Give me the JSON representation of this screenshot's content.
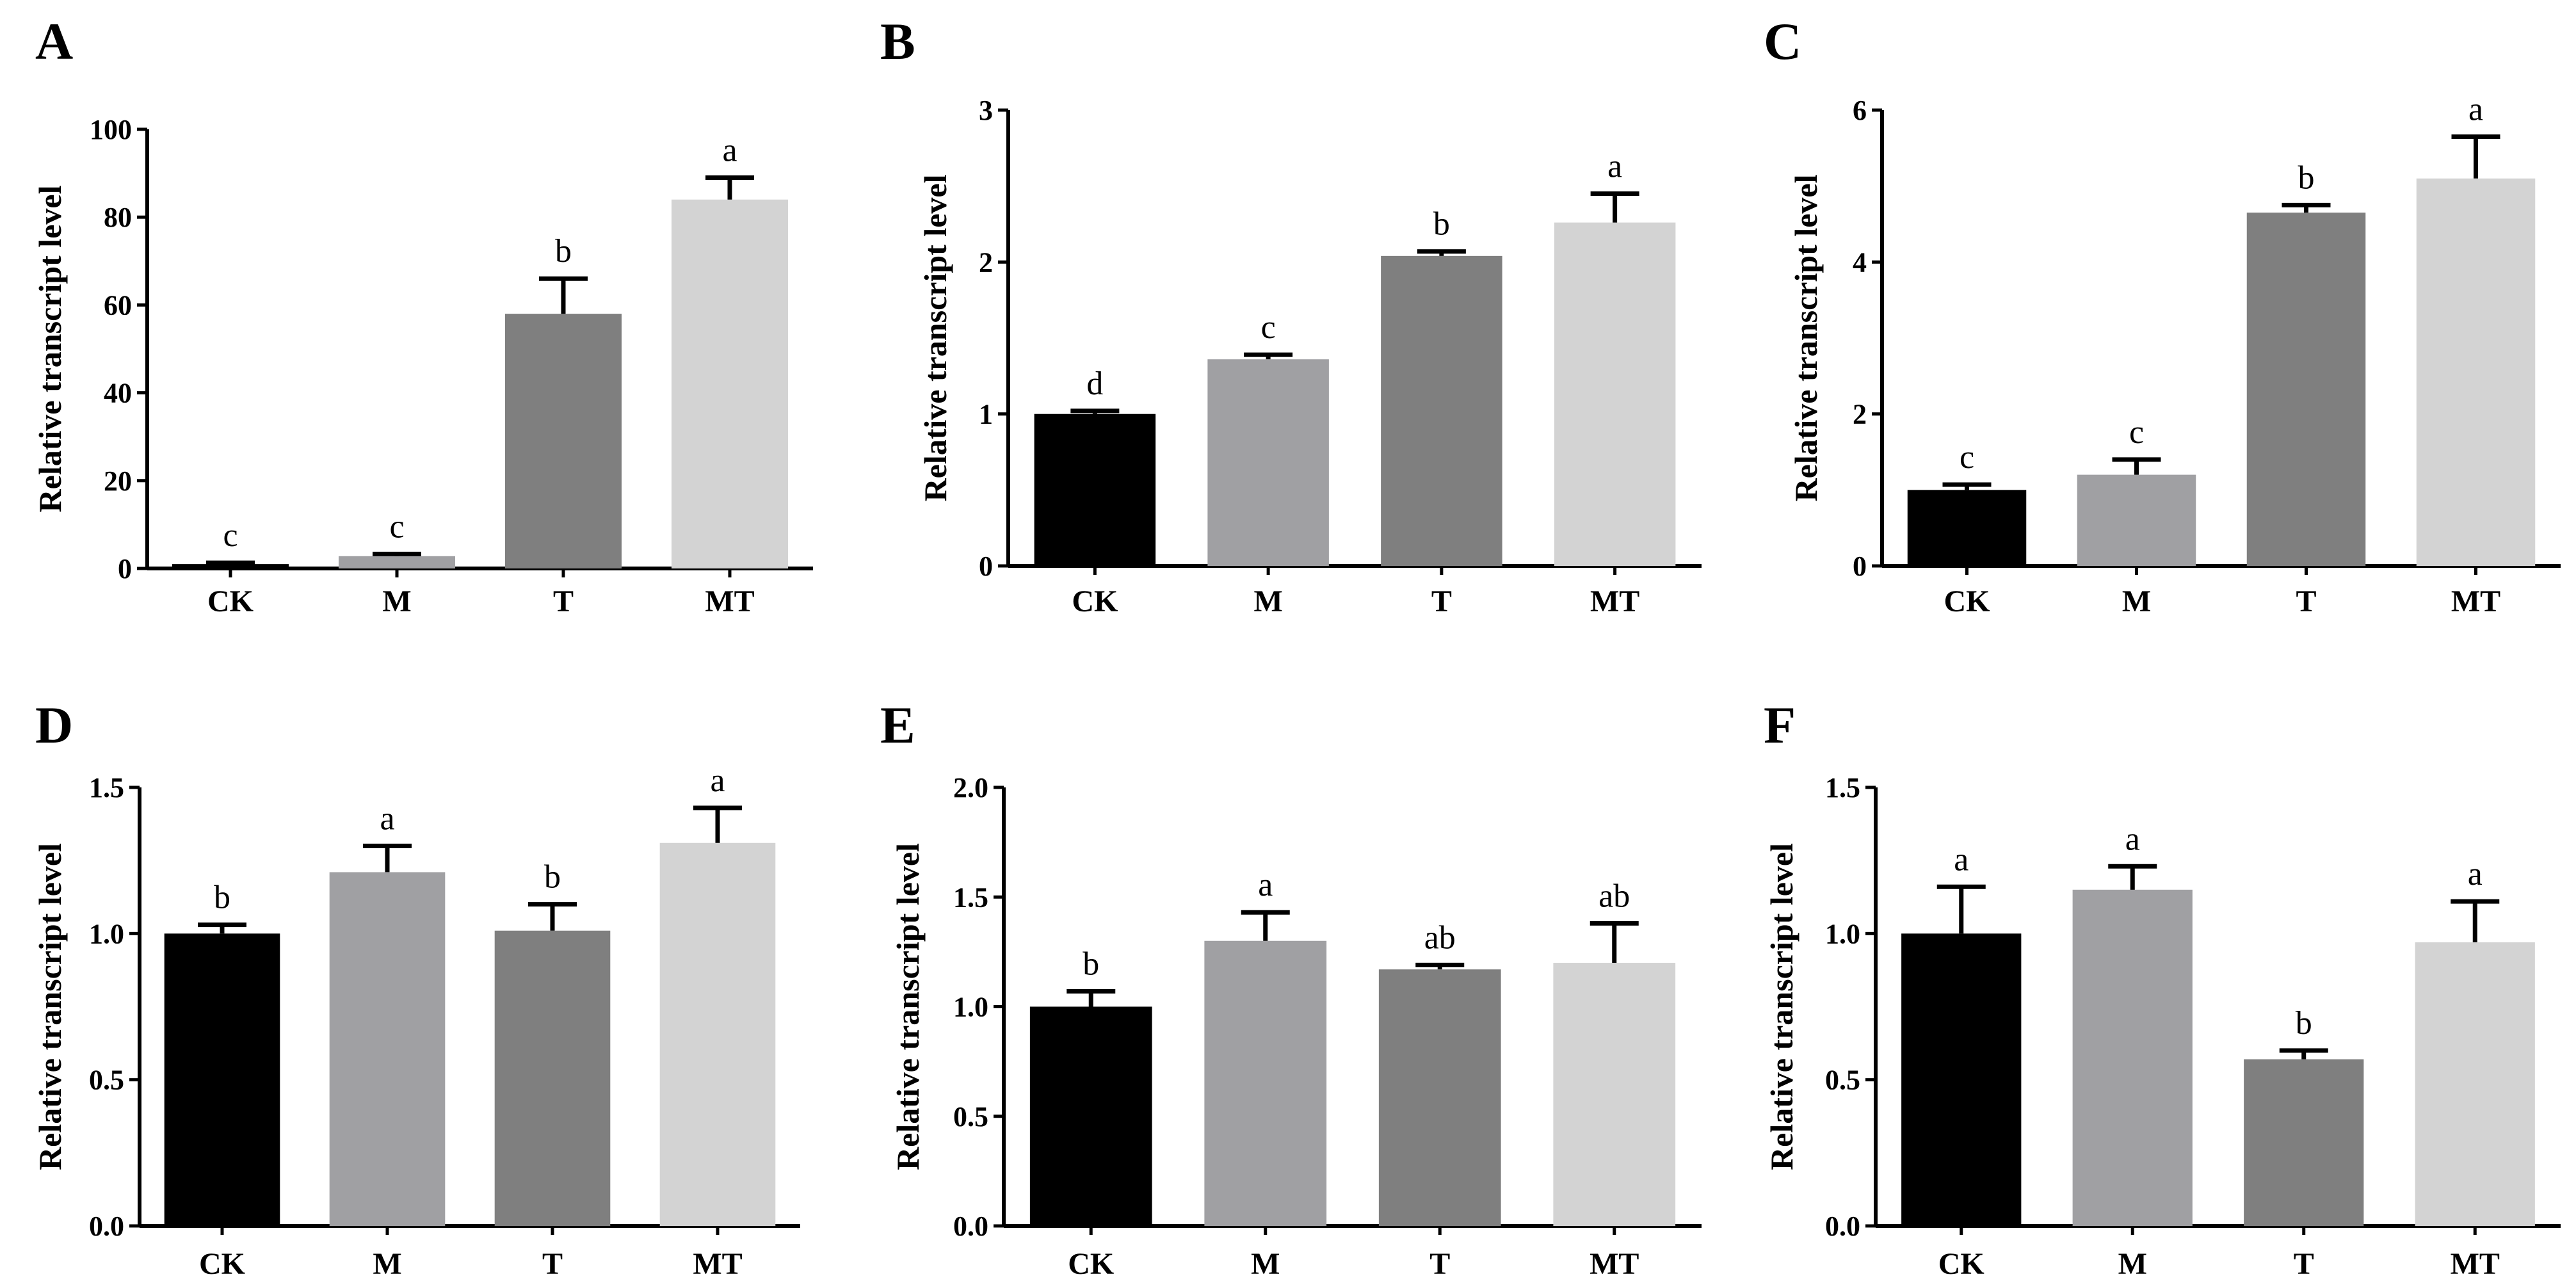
{
  "chart_data": [
    {
      "type": "bar",
      "panel": "A",
      "ylabel": "Relative transcript level",
      "categories": [
        "CK",
        "M",
        "T",
        "MT"
      ],
      "values": [
        1.0,
        2.8,
        58.0,
        84.0
      ],
      "errors": [
        0.3,
        0.5,
        8.0,
        5.0
      ],
      "significance": [
        "c",
        "c",
        "b",
        "a"
      ],
      "ylim": [
        0,
        100
      ],
      "yticks": [
        0,
        20,
        40,
        60,
        80,
        100
      ],
      "ytick_labels": [
        "0",
        "20",
        "40",
        "60",
        "80",
        "100"
      ],
      "colors": [
        "#000000",
        "#a0a0a3",
        "#7f7f7f",
        "#d3d3d3"
      ]
    },
    {
      "type": "bar",
      "panel": "B",
      "ylabel": "Relative transcript level",
      "categories": [
        "CK",
        "M",
        "T",
        "MT"
      ],
      "values": [
        1.0,
        1.36,
        2.04,
        2.26
      ],
      "errors": [
        0.02,
        0.03,
        0.03,
        0.19
      ],
      "significance": [
        "d",
        "c",
        "b",
        "a"
      ],
      "ylim": [
        0,
        3
      ],
      "yticks": [
        0,
        1,
        2,
        3
      ],
      "ytick_labels": [
        "0",
        "1",
        "2",
        "3"
      ],
      "colors": [
        "#000000",
        "#a0a0a3",
        "#7f7f7f",
        "#d3d3d3"
      ]
    },
    {
      "type": "bar",
      "panel": "C",
      "ylabel": "Relative transcript level",
      "categories": [
        "CK",
        "M",
        "T",
        "MT"
      ],
      "values": [
        1.0,
        1.2,
        4.65,
        5.1
      ],
      "errors": [
        0.07,
        0.2,
        0.1,
        0.55
      ],
      "significance": [
        "c",
        "c",
        "b",
        "a"
      ],
      "ylim": [
        0,
        6
      ],
      "yticks": [
        0,
        2,
        4,
        6
      ],
      "ytick_labels": [
        "0",
        "2",
        "4",
        "6"
      ],
      "colors": [
        "#000000",
        "#a0a0a3",
        "#7f7f7f",
        "#d3d3d3"
      ]
    },
    {
      "type": "bar",
      "panel": "D",
      "ylabel": "Relative transcript level",
      "categories": [
        "CK",
        "M",
        "T",
        "MT"
      ],
      "values": [
        1.0,
        1.21,
        1.01,
        1.31
      ],
      "errors": [
        0.03,
        0.09,
        0.09,
        0.12
      ],
      "significance": [
        "b",
        "a",
        "b",
        "a"
      ],
      "ylim": [
        0,
        1.5
      ],
      "yticks": [
        0,
        0.5,
        1.0,
        1.5
      ],
      "ytick_labels": [
        "0.0",
        "0.5",
        "1.0",
        "1.5"
      ],
      "colors": [
        "#000000",
        "#a0a0a3",
        "#7f7f7f",
        "#d3d3d3"
      ]
    },
    {
      "type": "bar",
      "panel": "E",
      "ylabel": "Relative transcript level",
      "categories": [
        "CK",
        "M",
        "T",
        "MT"
      ],
      "values": [
        1.0,
        1.3,
        1.17,
        1.2
      ],
      "errors": [
        0.07,
        0.13,
        0.02,
        0.18
      ],
      "significance": [
        "b",
        "a",
        "ab",
        "ab"
      ],
      "ylim": [
        0,
        2.0
      ],
      "yticks": [
        0,
        0.5,
        1.0,
        1.5,
        2.0
      ],
      "ytick_labels": [
        "0.0",
        "0.5",
        "1.0",
        "1.5",
        "2.0"
      ],
      "colors": [
        "#000000",
        "#a0a0a3",
        "#7f7f7f",
        "#d3d3d3"
      ]
    },
    {
      "type": "bar",
      "panel": "F",
      "ylabel": "Relative transcript level",
      "categories": [
        "CK",
        "M",
        "T",
        "MT"
      ],
      "values": [
        1.0,
        1.15,
        0.57,
        0.97
      ],
      "errors": [
        0.16,
        0.08,
        0.03,
        0.14
      ],
      "significance": [
        "a",
        "a",
        "b",
        "a"
      ],
      "ylim": [
        0,
        1.5
      ],
      "yticks": [
        0,
        0.5,
        1.0,
        1.5
      ],
      "ytick_labels": [
        "0.0",
        "0.5",
        "1.0",
        "1.5"
      ],
      "colors": [
        "#000000",
        "#a0a0a3",
        "#7f7f7f",
        "#d3d3d3"
      ]
    }
  ]
}
